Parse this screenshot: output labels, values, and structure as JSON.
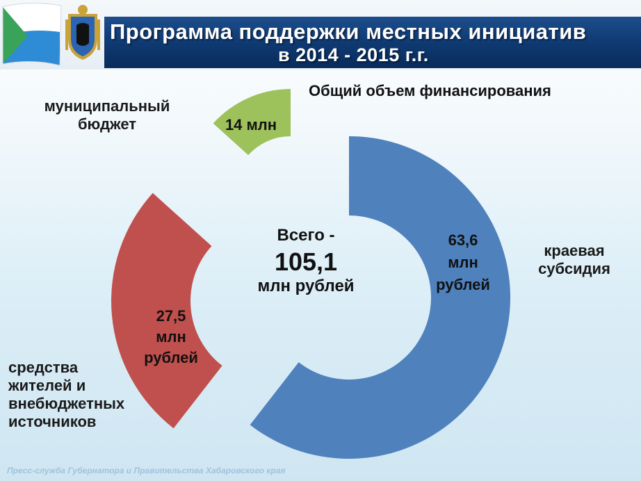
{
  "header": {
    "title_line1": "Программа поддержки местных инициатив",
    "title_line2": "в 2014 - 2015 г.г."
  },
  "chart_data": {
    "type": "pie",
    "title": "Общий объем финансирования",
    "center": {
      "line1": "Всего -",
      "total": "105,1",
      "unit": "млн рублей"
    },
    "unit": "млн рублей",
    "slices": [
      {
        "name": "муниципальный бюджет",
        "value": 14,
        "value_text": "14 млн",
        "color": "#9dc15b"
      },
      {
        "name": "краевая субсидия",
        "value": 63.6,
        "value_text": "63,6 млн рублей",
        "color": "#4f81bd"
      },
      {
        "name": "средства жителей и внебюджетных источников",
        "value": 27.5,
        "value_text": "27,5 млн рублей",
        "color": "#c0504d"
      }
    ]
  },
  "labels": {
    "muni": "муниципальный\nбюджет",
    "krai": "краевая\nсубсидия",
    "resid": "средства\nжителей и\nвнебюджетных\nисточников",
    "muni_value": "14 млн",
    "krai_value": "63,6\nмлн\nрублей",
    "resid_value": "27,5\nмлн\nрублей"
  },
  "footer": "Пресс-служба Губернатора и Правительства Хабаровского края"
}
